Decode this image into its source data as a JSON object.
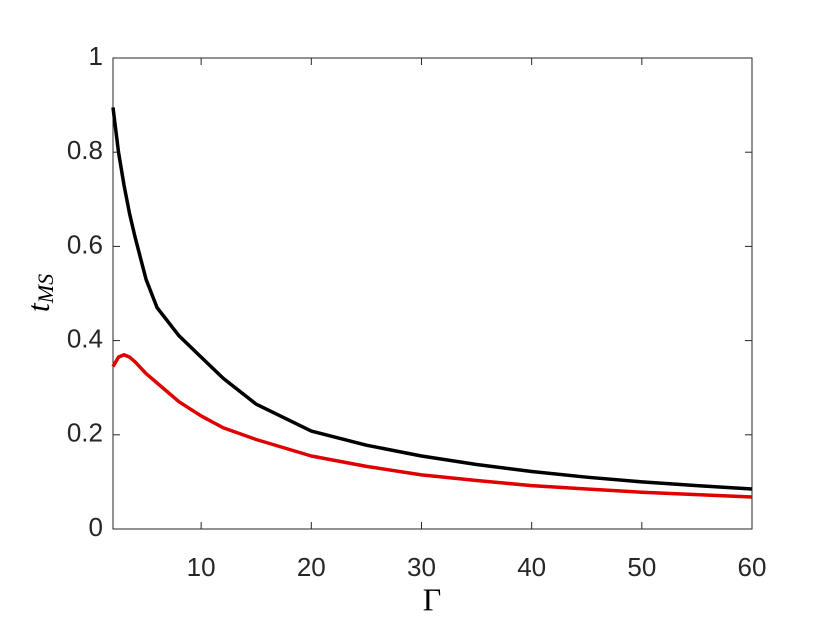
{
  "chart_data": {
    "type": "line",
    "xlabel": "Γ",
    "ylabel": {
      "base": "t",
      "sub": "MS"
    },
    "x": [
      2,
      2.5,
      3,
      3.5,
      4,
      5,
      6,
      8,
      10,
      12,
      15,
      20,
      25,
      30,
      35,
      40,
      45,
      50,
      55,
      60
    ],
    "series": [
      {
        "color": "#000000",
        "values": [
          0.895,
          0.8,
          0.73,
          0.67,
          0.62,
          0.53,
          0.47,
          0.41,
          0.365,
          0.32,
          0.265,
          0.208,
          0.178,
          0.155,
          0.137,
          0.122,
          0.11,
          0.1,
          0.092,
          0.085
        ]
      },
      {
        "color": "#e00000",
        "values": [
          0.345,
          0.365,
          0.37,
          0.365,
          0.355,
          0.33,
          0.31,
          0.27,
          0.24,
          0.215,
          0.19,
          0.155,
          0.133,
          0.115,
          0.103,
          0.092,
          0.085,
          0.078,
          0.073,
          0.068
        ]
      }
    ],
    "xlim": [
      2,
      60
    ],
    "xticks": [
      10,
      20,
      30,
      40,
      50,
      60
    ],
    "ylim": [
      0,
      1
    ],
    "yticks": [
      0,
      0.2,
      0.4,
      0.6,
      0.8,
      1
    ],
    "grid": false
  }
}
